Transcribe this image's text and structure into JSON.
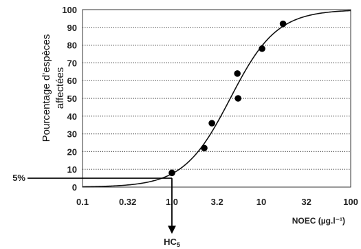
{
  "chart_data": {
    "type": "scatter",
    "title": "",
    "ylabel_line1": "Pourcentage d’espèces",
    "ylabel_line2": "affectées",
    "xlabel": "NOEC (µg.l⁻¹)",
    "xscale": "log",
    "xlim": [
      0.1,
      100
    ],
    "ylim": [
      0,
      100
    ],
    "x_ticks": [
      0.1,
      0.32,
      1.0,
      3.2,
      10,
      32,
      100
    ],
    "x_tick_labels": [
      "0.1",
      "0.32",
      "1.0",
      "3.2",
      "10",
      "32",
      "100"
    ],
    "y_ticks": [
      0,
      10,
      20,
      30,
      40,
      50,
      60,
      70,
      80,
      90,
      100
    ],
    "y_tick_labels": [
      "0",
      "10",
      "20",
      "30",
      "40",
      "50",
      "60",
      "70",
      "80",
      "90",
      "100"
    ],
    "grid": "horizontal dotted",
    "points": [
      {
        "x": 1.0,
        "y": 8
      },
      {
        "x": 2.3,
        "y": 22
      },
      {
        "x": 2.8,
        "y": 36
      },
      {
        "x": 5.5,
        "y": 50
      },
      {
        "x": 5.4,
        "y": 64
      },
      {
        "x": 10.2,
        "y": 78
      },
      {
        "x": 17.5,
        "y": 92
      }
    ],
    "fit_curve": {
      "type": "log-logistic",
      "median": 4.5,
      "log10_scale": 0.26
    },
    "annotations": {
      "five_percent_label": "5%",
      "five_percent_value": 5,
      "hc5_label_main": "HC",
      "hc5_label_sub": "5",
      "hc5_x": 1.0
    }
  }
}
